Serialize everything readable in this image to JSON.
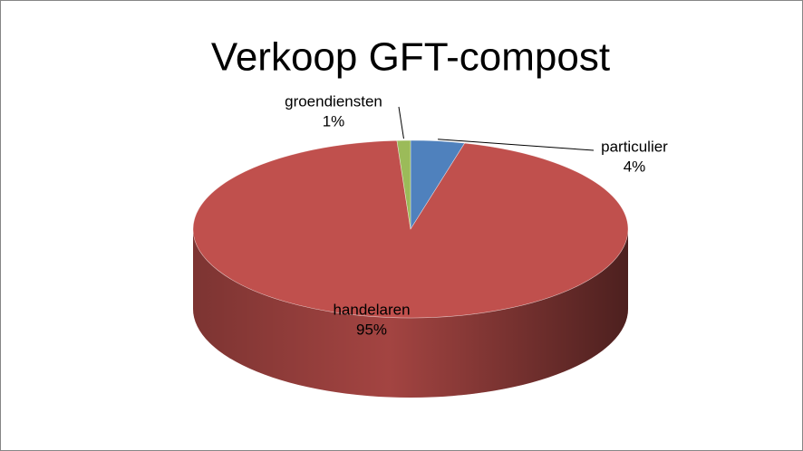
{
  "chart_data": {
    "type": "pie3d",
    "title": "Verkoop GFT-compost",
    "categories": [
      "particulier",
      "handelaren",
      "groendiensten"
    ],
    "values": [
      4,
      95,
      1
    ],
    "value_labels": [
      "4%",
      "95%",
      "1%"
    ],
    "colors": [
      "#4f81bd",
      "#c0504d",
      "#9bbb59"
    ]
  }
}
